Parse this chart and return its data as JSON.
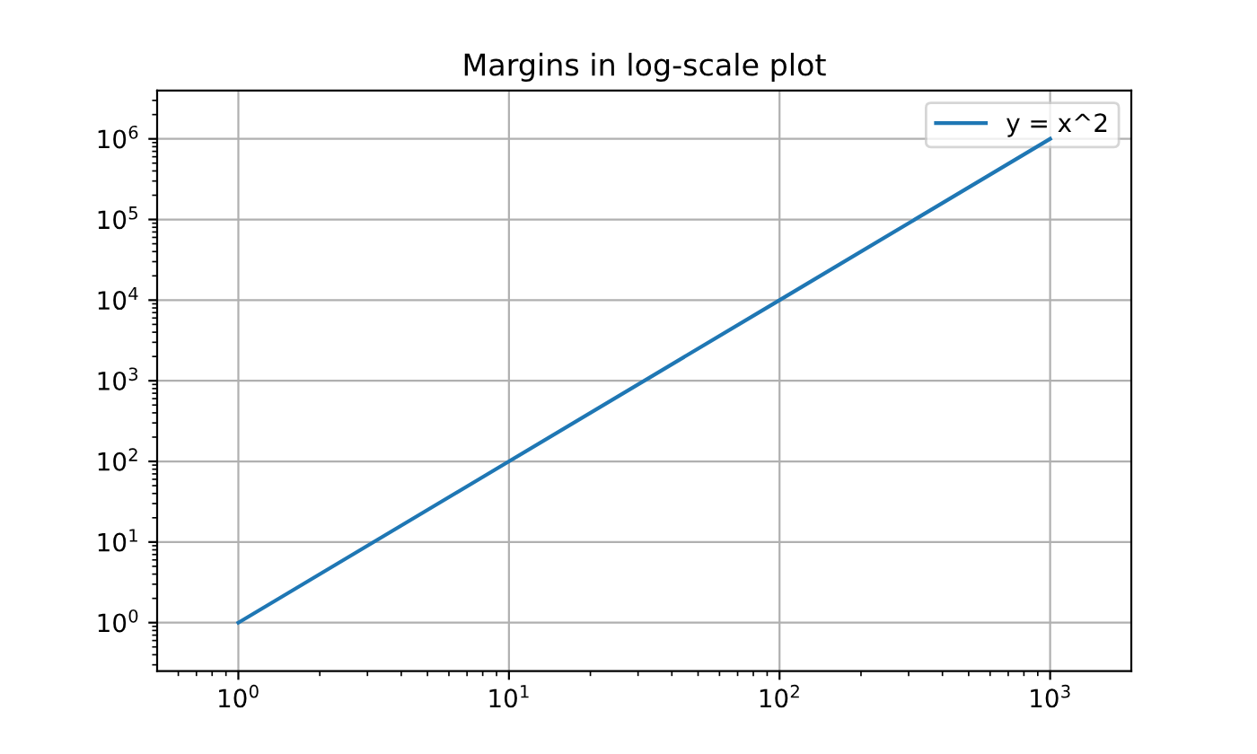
{
  "chart_data": {
    "type": "line",
    "title": "Margins in log-scale plot",
    "x": [
      1,
      10,
      100,
      1000
    ],
    "series": [
      {
        "name": "y = x^2",
        "color": "#1f77b4",
        "values": [
          1,
          100,
          10000,
          1000000
        ]
      }
    ],
    "log": "xy",
    "xlim": [
      0.501,
      1995
    ],
    "ylim": [
      0.251,
      3981000
    ],
    "xticks": [
      {
        "value": 1,
        "label": "10$^{0}$"
      },
      {
        "value": 10,
        "label": "10$^{1}$"
      },
      {
        "value": 100,
        "label": "10$^{2}$"
      },
      {
        "value": 1000,
        "label": "10$^{3}$"
      }
    ],
    "yticks": [
      {
        "value": 1,
        "label": "10$^{0}$"
      },
      {
        "value": 10,
        "label": "10$^{1}$"
      },
      {
        "value": 100,
        "label": "10$^{2}$"
      },
      {
        "value": 1000,
        "label": "10$^{3}$"
      },
      {
        "value": 10000,
        "label": "10$^{4}$"
      },
      {
        "value": 100000,
        "label": "10$^{5}$"
      },
      {
        "value": 1000000,
        "label": "10$^{6}$"
      }
    ],
    "grid": true,
    "legend": "top right",
    "marker": "none",
    "line_style": "solid"
  }
}
